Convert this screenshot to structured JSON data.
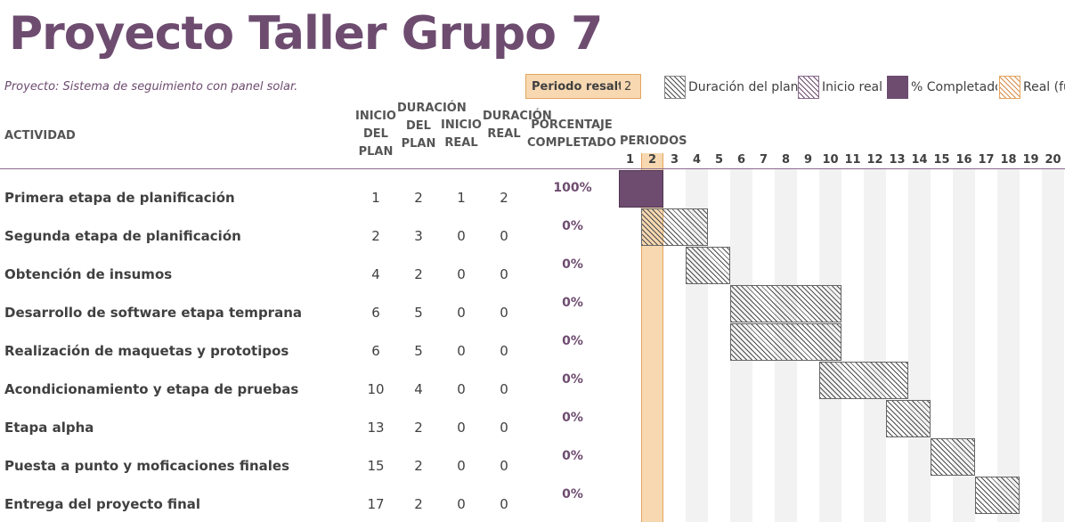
{
  "title": "Proyecto Taller Grupo 7",
  "subtitle": "Proyecto: Sistema de seguimiento con panel solar.",
  "period_highlight": {
    "label": "Periodo resaltado",
    "value": "2"
  },
  "legend": [
    {
      "label": "Duración del plan",
      "icon": "hatch-black-swatch"
    },
    {
      "label": "Inicio real",
      "icon": "hatch-purple-swatch"
    },
    {
      "label": "% Completado",
      "icon": "solid-purple-swatch"
    },
    {
      "label": "Real (fuera del plan)",
      "icon": "hatch-orange-swatch"
    }
  ],
  "columns": {
    "actividad": "ACTIVIDAD",
    "inicio_plan": "INICIO DEL PLAN",
    "duracion_plan": "DURACIÓN DEL PLAN",
    "inicio_real": "INICIO REAL",
    "duracion_real": "DURACIÓN REAL",
    "porcentaje": "PORCENTAJE COMPLETADO",
    "periodos": "PERIODOS"
  },
  "period_numbers": [
    "1",
    "2",
    "3",
    "4",
    "5",
    "6",
    "7",
    "8",
    "9",
    "10",
    "11",
    "12",
    "13",
    "14",
    "15",
    "16",
    "17",
    "18",
    "19",
    "20"
  ],
  "colors": {
    "accent": "#6e4c70",
    "highlight": "#f7d8b0",
    "highlight_border": "#e5a55f",
    "column_shade": "#f2f2f2"
  },
  "rows": [
    {
      "name": "Primera etapa de planificación",
      "inicio_plan": "1",
      "duracion_plan": "2",
      "inicio_real": "1",
      "duracion_real": "2",
      "pct": "100%",
      "pct_value": 100
    },
    {
      "name": "Segunda etapa de planificación",
      "inicio_plan": "2",
      "duracion_plan": "3",
      "inicio_real": "0",
      "duracion_real": "0",
      "pct": "0%",
      "pct_value": 0
    },
    {
      "name": "Obtención de insumos",
      "inicio_plan": "4",
      "duracion_plan": "2",
      "inicio_real": "0",
      "duracion_real": "0",
      "pct": "0%",
      "pct_value": 0
    },
    {
      "name": "Desarrollo de software etapa temprana",
      "inicio_plan": "6",
      "duracion_plan": "5",
      "inicio_real": "0",
      "duracion_real": "0",
      "pct": "0%",
      "pct_value": 0
    },
    {
      "name": "Realización de maquetas y prototipos",
      "inicio_plan": "6",
      "duracion_plan": "5",
      "inicio_real": "0",
      "duracion_real": "0",
      "pct": "0%",
      "pct_value": 0
    },
    {
      "name": "Acondicionamiento y etapa de pruebas",
      "inicio_plan": "10",
      "duracion_plan": "4",
      "inicio_real": "0",
      "duracion_real": "0",
      "pct": "0%",
      "pct_value": 0
    },
    {
      "name": "Etapa alpha",
      "inicio_plan": "13",
      "duracion_plan": "2",
      "inicio_real": "0",
      "duracion_real": "0",
      "pct": "0%",
      "pct_value": 0
    },
    {
      "name": "Puesta a punto y moficaciones finales",
      "inicio_plan": "15",
      "duracion_plan": "2",
      "inicio_real": "0",
      "duracion_real": "0",
      "pct": "0%",
      "pct_value": 0
    },
    {
      "name": "Entrega del proyecto final",
      "inicio_plan": "17",
      "duracion_plan": "2",
      "inicio_real": "0",
      "duracion_real": "0",
      "pct": "0%",
      "pct_value": 0
    }
  ]
}
